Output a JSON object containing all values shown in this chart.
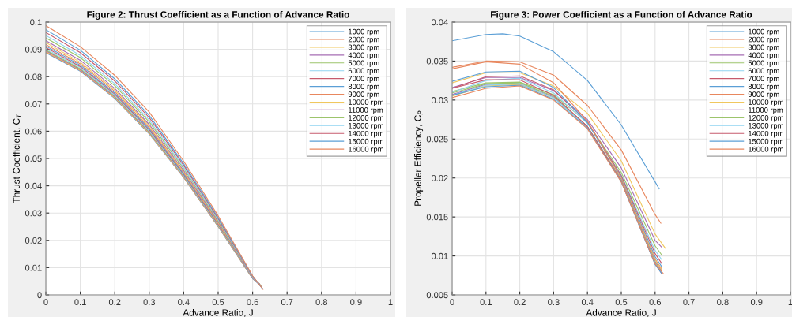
{
  "chart_data": [
    {
      "type": "line",
      "title": "Figure 2: Thrust Coefficient as a Function of Advance Ratio",
      "xlabel": "Advance Ratio, J",
      "ylabel": "Thrust Coefficient, C$_{T}$",
      "xlim": [
        0,
        1
      ],
      "ylim": [
        0,
        0.1
      ],
      "xticks": [
        0,
        0.1,
        0.2,
        0.3,
        0.4,
        0.5,
        0.6,
        0.7,
        0.8,
        0.9,
        1
      ],
      "yticks": [
        0,
        0.01,
        0.02,
        0.03,
        0.04,
        0.05,
        0.06,
        0.07,
        0.08,
        0.09,
        0.1
      ],
      "grid": true,
      "legend": "top right",
      "marker": "none",
      "line_style": "solid",
      "series": [
        {
          "name": "1000 rpm",
          "color": "#5b9fd6",
          "x": [
            0,
            0.1,
            0.2,
            0.3,
            0.4,
            0.5,
            0.6,
            0.62
          ],
          "values": [
            0.0888,
            0.082,
            0.072,
            0.059,
            0.043,
            0.025,
            0.006,
            0.004
          ]
        },
        {
          "name": "2000 rpm",
          "color": "#e8875e",
          "x": [
            0,
            0.1,
            0.2,
            0.3,
            0.4,
            0.5,
            0.6,
            0.62
          ],
          "values": [
            0.089,
            0.0822,
            0.0722,
            0.0592,
            0.0431,
            0.0251,
            0.006,
            0.004
          ]
        },
        {
          "name": "3000 rpm",
          "color": "#f0c75e",
          "x": [
            0,
            0.1,
            0.2,
            0.3,
            0.4,
            0.5,
            0.6,
            0.62
          ],
          "values": [
            0.0892,
            0.0824,
            0.0723,
            0.0593,
            0.0432,
            0.0252,
            0.006,
            0.0039
          ]
        },
        {
          "name": "4000 rpm",
          "color": "#a66db3",
          "x": [
            0,
            0.1,
            0.2,
            0.3,
            0.4,
            0.5,
            0.6,
            0.621
          ],
          "values": [
            0.0895,
            0.0826,
            0.0726,
            0.0596,
            0.0434,
            0.0253,
            0.0061,
            0.0039
          ]
        },
        {
          "name": "5000 rpm",
          "color": "#9cc46b",
          "x": [
            0,
            0.1,
            0.2,
            0.3,
            0.4,
            0.5,
            0.6,
            0.621
          ],
          "values": [
            0.0898,
            0.0829,
            0.0729,
            0.0598,
            0.0436,
            0.0254,
            0.0061,
            0.0038
          ]
        },
        {
          "name": "6000 rpm",
          "color": "#8fd3f0",
          "x": [
            0,
            0.1,
            0.2,
            0.3,
            0.4,
            0.5,
            0.6,
            0.621
          ],
          "values": [
            0.0902,
            0.0833,
            0.0732,
            0.0601,
            0.0438,
            0.0256,
            0.0061,
            0.0037
          ]
        },
        {
          "name": "7000 rpm",
          "color": "#c65a6c",
          "x": [
            0,
            0.1,
            0.2,
            0.3,
            0.4,
            0.5,
            0.6,
            0.622
          ],
          "values": [
            0.0907,
            0.0837,
            0.0736,
            0.0605,
            0.0441,
            0.0258,
            0.0062,
            0.0036
          ]
        },
        {
          "name": "8000 rpm",
          "color": "#5b9fd6",
          "x": [
            0,
            0.1,
            0.2,
            0.3,
            0.4,
            0.5,
            0.6,
            0.622
          ],
          "values": [
            0.0912,
            0.0842,
            0.074,
            0.0609,
            0.0444,
            0.026,
            0.0062,
            0.0035
          ]
        },
        {
          "name": "9000 rpm",
          "color": "#e8875e",
          "x": [
            0,
            0.1,
            0.2,
            0.3,
            0.4,
            0.5,
            0.6,
            0.623
          ],
          "values": [
            0.0918,
            0.0847,
            0.0746,
            0.0614,
            0.0448,
            0.0262,
            0.0063,
            0.0034
          ]
        },
        {
          "name": "10000 rpm",
          "color": "#f0c75e",
          "x": [
            0,
            0.1,
            0.2,
            0.3,
            0.4,
            0.5,
            0.6,
            0.624
          ],
          "values": [
            0.0925,
            0.0853,
            0.0751,
            0.062,
            0.0452,
            0.0265,
            0.0064,
            0.0033
          ]
        },
        {
          "name": "11000 rpm",
          "color": "#a66db3",
          "x": [
            0,
            0.1,
            0.2,
            0.3,
            0.4,
            0.5,
            0.6,
            0.624
          ],
          "values": [
            0.0932,
            0.086,
            0.0757,
            0.0625,
            0.0456,
            0.0268,
            0.0064,
            0.0031
          ]
        },
        {
          "name": "12000 rpm",
          "color": "#9cc46b",
          "x": [
            0,
            0.1,
            0.2,
            0.3,
            0.4,
            0.5,
            0.6,
            0.626
          ],
          "values": [
            0.0942,
            0.087,
            0.0767,
            0.0634,
            0.0463,
            0.0272,
            0.0066,
            0.0029
          ]
        },
        {
          "name": "13000 rpm",
          "color": "#8fd3f0",
          "x": [
            0,
            0.1,
            0.2,
            0.3,
            0.4,
            0.5,
            0.6,
            0.626
          ],
          "values": [
            0.0951,
            0.0878,
            0.0774,
            0.0641,
            0.0468,
            0.0276,
            0.0066,
            0.0027
          ]
        },
        {
          "name": "14000 rpm",
          "color": "#c65a6c",
          "x": [
            0,
            0.1,
            0.2,
            0.3,
            0.4,
            0.5,
            0.6,
            0.628
          ],
          "values": [
            0.0962,
            0.0888,
            0.0784,
            0.065,
            0.0475,
            0.028,
            0.0068,
            0.0025
          ]
        },
        {
          "name": "15000 rpm",
          "color": "#5b9fd6",
          "x": [
            0,
            0.1,
            0.2,
            0.3,
            0.4,
            0.5,
            0.6,
            0.629
          ],
          "values": [
            0.0972,
            0.0897,
            0.0792,
            0.0658,
            0.0481,
            0.0284,
            0.0069,
            0.0023
          ]
        },
        {
          "name": "16000 rpm",
          "color": "#e8875e",
          "x": [
            0,
            0.1,
            0.2,
            0.3,
            0.4,
            0.5,
            0.6,
            0.63
          ],
          "values": [
            0.0987,
            0.091,
            0.0805,
            0.067,
            0.049,
            0.029,
            0.007,
            0.002
          ]
        }
      ]
    },
    {
      "type": "line",
      "title": "Figure 3: Power Coefficient as a Function of Advance Ratio",
      "xlabel": "Advance Ratio, J",
      "ylabel": "Propeller Efficiency, C$_{P}$",
      "xlim": [
        0,
        1
      ],
      "ylim": [
        0.005,
        0.04
      ],
      "xticks": [
        0,
        0.1,
        0.2,
        0.3,
        0.4,
        0.5,
        0.6,
        0.7,
        0.8,
        0.9,
        1
      ],
      "yticks": [
        0.005,
        0.01,
        0.015,
        0.02,
        0.025,
        0.03,
        0.035,
        0.04
      ],
      "grid": true,
      "legend": "top right",
      "marker": "none",
      "line_style": "solid",
      "series": [
        {
          "name": "1000 rpm",
          "color": "#5b9fd6",
          "x": [
            0,
            0.1,
            0.15,
            0.2,
            0.3,
            0.4,
            0.5,
            0.6,
            0.612
          ],
          "values": [
            0.0376,
            0.0384,
            0.0385,
            0.0382,
            0.0362,
            0.0325,
            0.0268,
            0.0195,
            0.0186
          ]
        },
        {
          "name": "2000 rpm",
          "color": "#e8875e",
          "x": [
            0,
            0.1,
            0.2,
            0.3,
            0.4,
            0.5,
            0.6,
            0.617
          ],
          "values": [
            0.0342,
            0.035,
            0.0349,
            0.0332,
            0.0293,
            0.0236,
            0.0153,
            0.0142
          ]
        },
        {
          "name": "3000 rpm",
          "color": "#f0c75e",
          "x": [
            0,
            0.1,
            0.2,
            0.3,
            0.4,
            0.5,
            0.6,
            0.63
          ],
          "values": [
            0.0322,
            0.0335,
            0.0335,
            0.0318,
            0.0283,
            0.0222,
            0.0128,
            0.011
          ]
        },
        {
          "name": "4000 rpm",
          "color": "#a66db3",
          "x": [
            0,
            0.1,
            0.2,
            0.3,
            0.4,
            0.5,
            0.6,
            0.62
          ],
          "values": [
            0.0316,
            0.0329,
            0.0329,
            0.0312,
            0.0275,
            0.0213,
            0.012,
            0.0111
          ]
        },
        {
          "name": "5000 rpm",
          "color": "#9cc46b",
          "x": [
            0,
            0.1,
            0.2,
            0.3,
            0.4,
            0.5,
            0.6,
            0.62
          ],
          "values": [
            0.0311,
            0.0322,
            0.0323,
            0.0307,
            0.0271,
            0.0207,
            0.0113,
            0.0101
          ]
        },
        {
          "name": "6000 rpm",
          "color": "#8fd3f0",
          "x": [
            0,
            0.1,
            0.2,
            0.3,
            0.4,
            0.5,
            0.6,
            0.62
          ],
          "values": [
            0.031,
            0.0325,
            0.0328,
            0.0309,
            0.027,
            0.0204,
            0.0107,
            0.0095
          ]
        },
        {
          "name": "7000 rpm",
          "color": "#c65a6c",
          "x": [
            0,
            0.1,
            0.2,
            0.3,
            0.4,
            0.5,
            0.6,
            0.62
          ],
          "values": [
            0.0315,
            0.033,
            0.0331,
            0.0313,
            0.0272,
            0.0203,
            0.0103,
            0.009
          ]
        },
        {
          "name": "8000 rpm",
          "color": "#5b9fd6",
          "x": [
            0,
            0.1,
            0.2,
            0.3,
            0.4,
            0.5,
            0.6,
            0.62
          ],
          "values": [
            0.0324,
            0.0336,
            0.0337,
            0.0316,
            0.0271,
            0.0201,
            0.0099,
            0.0086
          ]
        },
        {
          "name": "9000 rpm",
          "color": "#e8875e",
          "x": [
            0,
            0.1,
            0.2,
            0.3,
            0.4,
            0.5,
            0.6,
            0.62
          ],
          "values": [
            0.034,
            0.0349,
            0.0346,
            0.0322,
            0.0273,
            0.02,
            0.0096,
            0.0083
          ]
        },
        {
          "name": "10000 rpm",
          "color": "#f0c75e",
          "x": [
            0,
            0.1,
            0.2,
            0.3,
            0.4,
            0.5,
            0.6,
            0.62
          ],
          "values": [
            0.0305,
            0.0318,
            0.032,
            0.0303,
            0.0266,
            0.0199,
            0.0095,
            0.0082
          ]
        },
        {
          "name": "11000 rpm",
          "color": "#a66db3",
          "x": [
            0,
            0.1,
            0.2,
            0.3,
            0.4,
            0.5,
            0.6,
            0.62
          ],
          "values": [
            0.0307,
            0.032,
            0.0321,
            0.0304,
            0.0266,
            0.0198,
            0.0093,
            0.008
          ]
        },
        {
          "name": "12000 rpm",
          "color": "#9cc46b",
          "x": [
            0,
            0.1,
            0.2,
            0.3,
            0.4,
            0.5,
            0.6,
            0.62
          ],
          "values": [
            0.0309,
            0.0321,
            0.0322,
            0.0305,
            0.0266,
            0.0197,
            0.0092,
            0.0079
          ]
        },
        {
          "name": "13000 rpm",
          "color": "#8fd3f0",
          "x": [
            0,
            0.1,
            0.2,
            0.3,
            0.4,
            0.5,
            0.6,
            0.62
          ],
          "values": [
            0.0306,
            0.0319,
            0.0321,
            0.0303,
            0.0265,
            0.0196,
            0.0091,
            0.0078
          ]
        },
        {
          "name": "14000 rpm",
          "color": "#c65a6c",
          "x": [
            0,
            0.1,
            0.2,
            0.3,
            0.4,
            0.5,
            0.6,
            0.62
          ],
          "values": [
            0.0315,
            0.0326,
            0.0326,
            0.0306,
            0.0266,
            0.0196,
            0.009,
            0.0077
          ]
        },
        {
          "name": "15000 rpm",
          "color": "#5b9fd6",
          "x": [
            0,
            0.1,
            0.2,
            0.3,
            0.4,
            0.5,
            0.6,
            0.62
          ],
          "values": [
            0.0306,
            0.0317,
            0.0319,
            0.0301,
            0.0264,
            0.0195,
            0.0089,
            0.0077
          ]
        },
        {
          "name": "16000 rpm",
          "color": "#e8875e",
          "x": [
            0,
            0.1,
            0.2,
            0.3,
            0.4,
            0.5,
            0.6,
            0.625
          ],
          "values": [
            0.0303,
            0.0315,
            0.0318,
            0.03,
            0.0263,
            0.0195,
            0.009,
            0.0077
          ]
        }
      ]
    }
  ]
}
